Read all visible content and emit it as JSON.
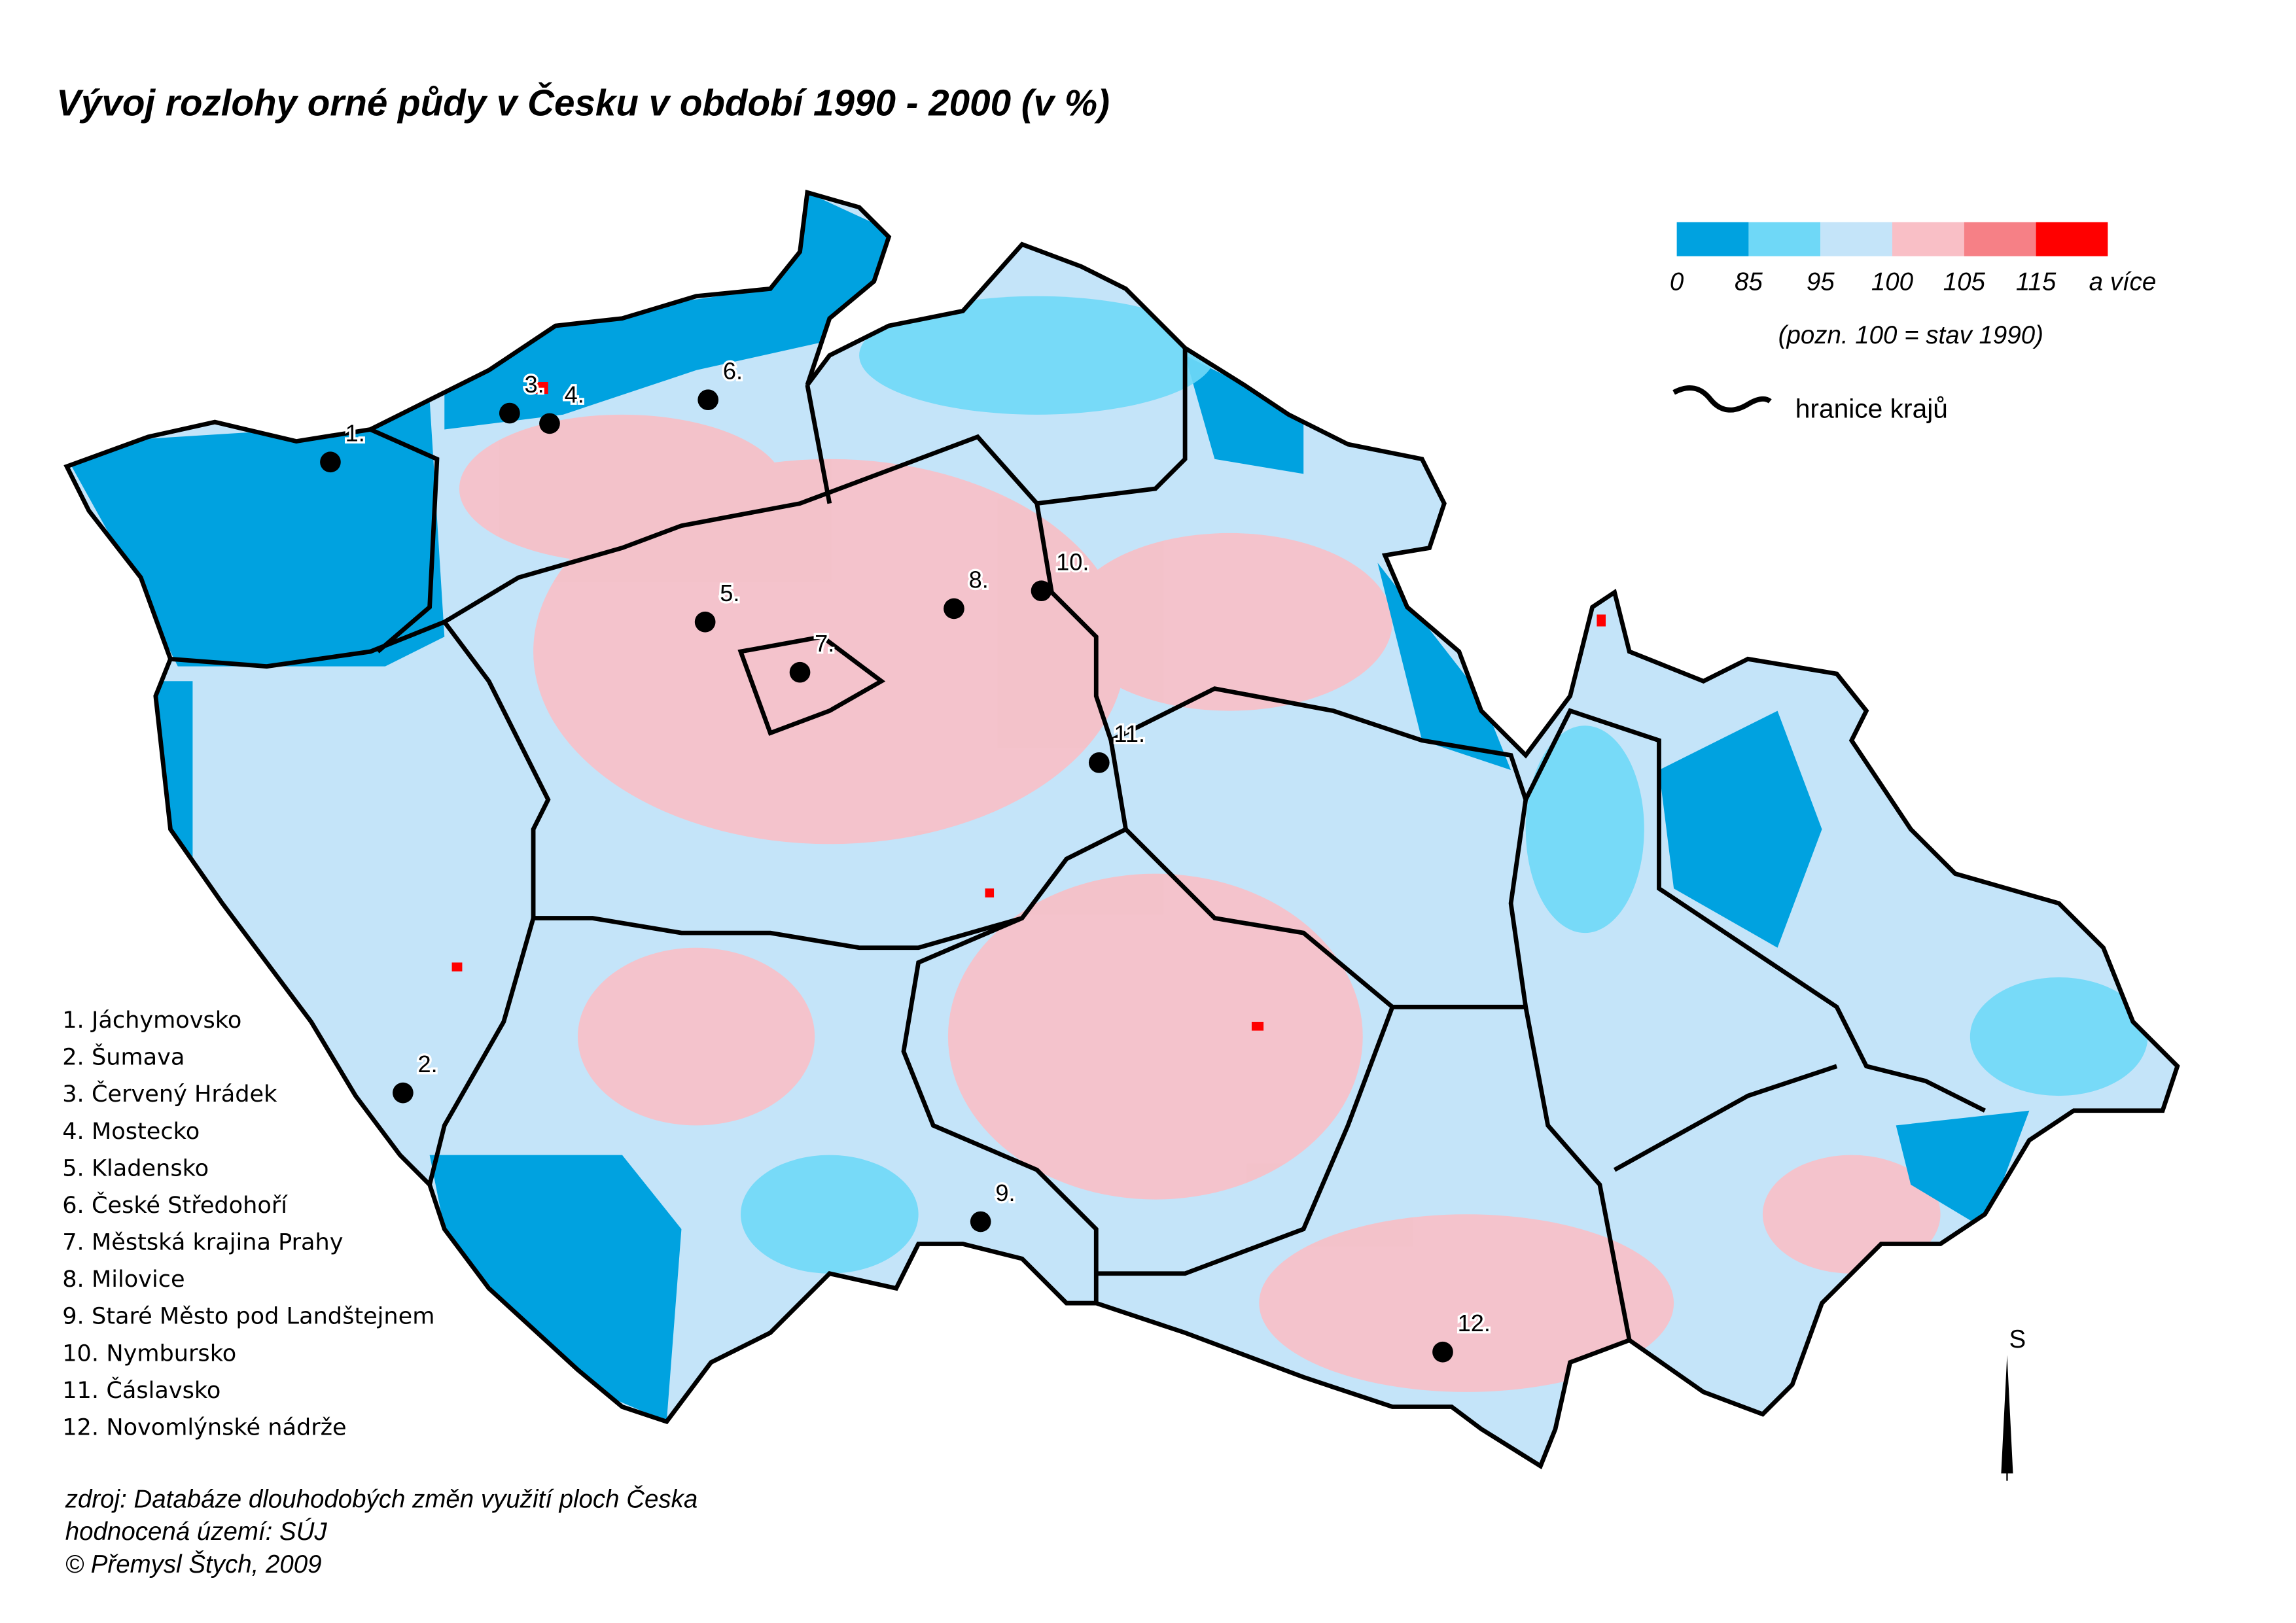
{
  "title": "Vývoj rozlohy orné půdy v Česku v období 1990 - 2000 (v %)",
  "legend": {
    "breaks": [
      0,
      85,
      95,
      100,
      105,
      115
    ],
    "last_label": "a více",
    "colors": [
      "#00a2e0",
      "#6fd8f7",
      "#c4e4f9",
      "#f9bfc6",
      "#f68086",
      "#ff0000"
    ],
    "note": "(pozn. 100 = stav 1990)",
    "border_label": "hranice krajů"
  },
  "places": [
    {
      "label": "1.",
      "name": "Jáchymovsko"
    },
    {
      "label": "2.",
      "name": "Šumava"
    },
    {
      "label": "3.",
      "name": "Červený Hrádek"
    },
    {
      "label": "4.",
      "name": "Mostecko"
    },
    {
      "label": "5.",
      "name": "Kladensko"
    },
    {
      "label": "6.",
      "name": "České Středohoří"
    },
    {
      "label": "7.",
      "name": "Městská krajina Prahy"
    },
    {
      "label": "8.",
      "name": "Milovice"
    },
    {
      "label": "9.",
      "name": "Staré Město pod Landštejnem"
    },
    {
      "label": "10.",
      "name": "Nymbursko"
    },
    {
      "label": "11.",
      "name": "Čáslavsko"
    },
    {
      "label": "12.",
      "name": "Novomlýnské nádrže"
    }
  ],
  "source": [
    "zdroj: Databáze dlouhodobých změn využití ploch Česka",
    "hodnocená území: SÚJ",
    "© Přemysl Štych, 2009"
  ],
  "compass": "S"
}
